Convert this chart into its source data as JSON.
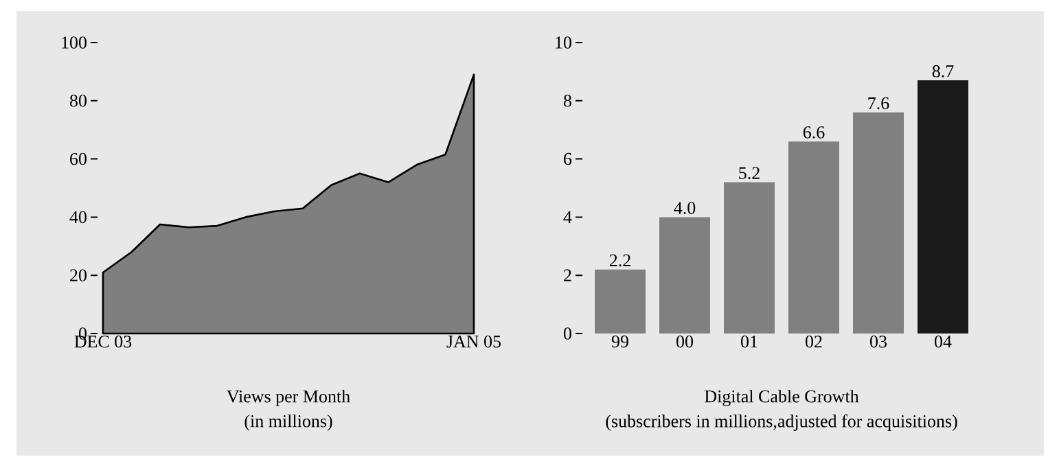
{
  "chart_data": [
    {
      "type": "area",
      "title": "Views per Month",
      "subtitle": "(in millions)",
      "categories": [
        "DEC 03",
        null,
        null,
        null,
        null,
        null,
        null,
        null,
        null,
        null,
        null,
        null,
        null,
        "JAN 05"
      ],
      "values": [
        21,
        28,
        37.5,
        36.5,
        37,
        40,
        42,
        43,
        51,
        55,
        52,
        58,
        61.5,
        89
      ],
      "color": "#7f7f7f",
      "ylim": [
        0,
        100
      ],
      "yticks": [
        0,
        20,
        40,
        60,
        80,
        100
      ],
      "grid": false
    },
    {
      "type": "bar",
      "title": "Digital Cable Growth",
      "subtitle": "(subscribers in millions,adjusted for acquisitions)",
      "categories": [
        "99",
        "00",
        "01",
        "02",
        "03",
        "04"
      ],
      "values": [
        2.2,
        4.0,
        5.2,
        6.6,
        7.6,
        8.7
      ],
      "value_labels": [
        "2.2",
        "4.0",
        "5.2",
        "6.6",
        "7.6",
        "8.7"
      ],
      "colors": [
        "#808080",
        "#808080",
        "#808080",
        "#808080",
        "#808080",
        "#1a1a1a"
      ],
      "ylim": [
        0,
        10
      ],
      "yticks": [
        0,
        2,
        4,
        6,
        8,
        10
      ],
      "grid": false
    }
  ]
}
